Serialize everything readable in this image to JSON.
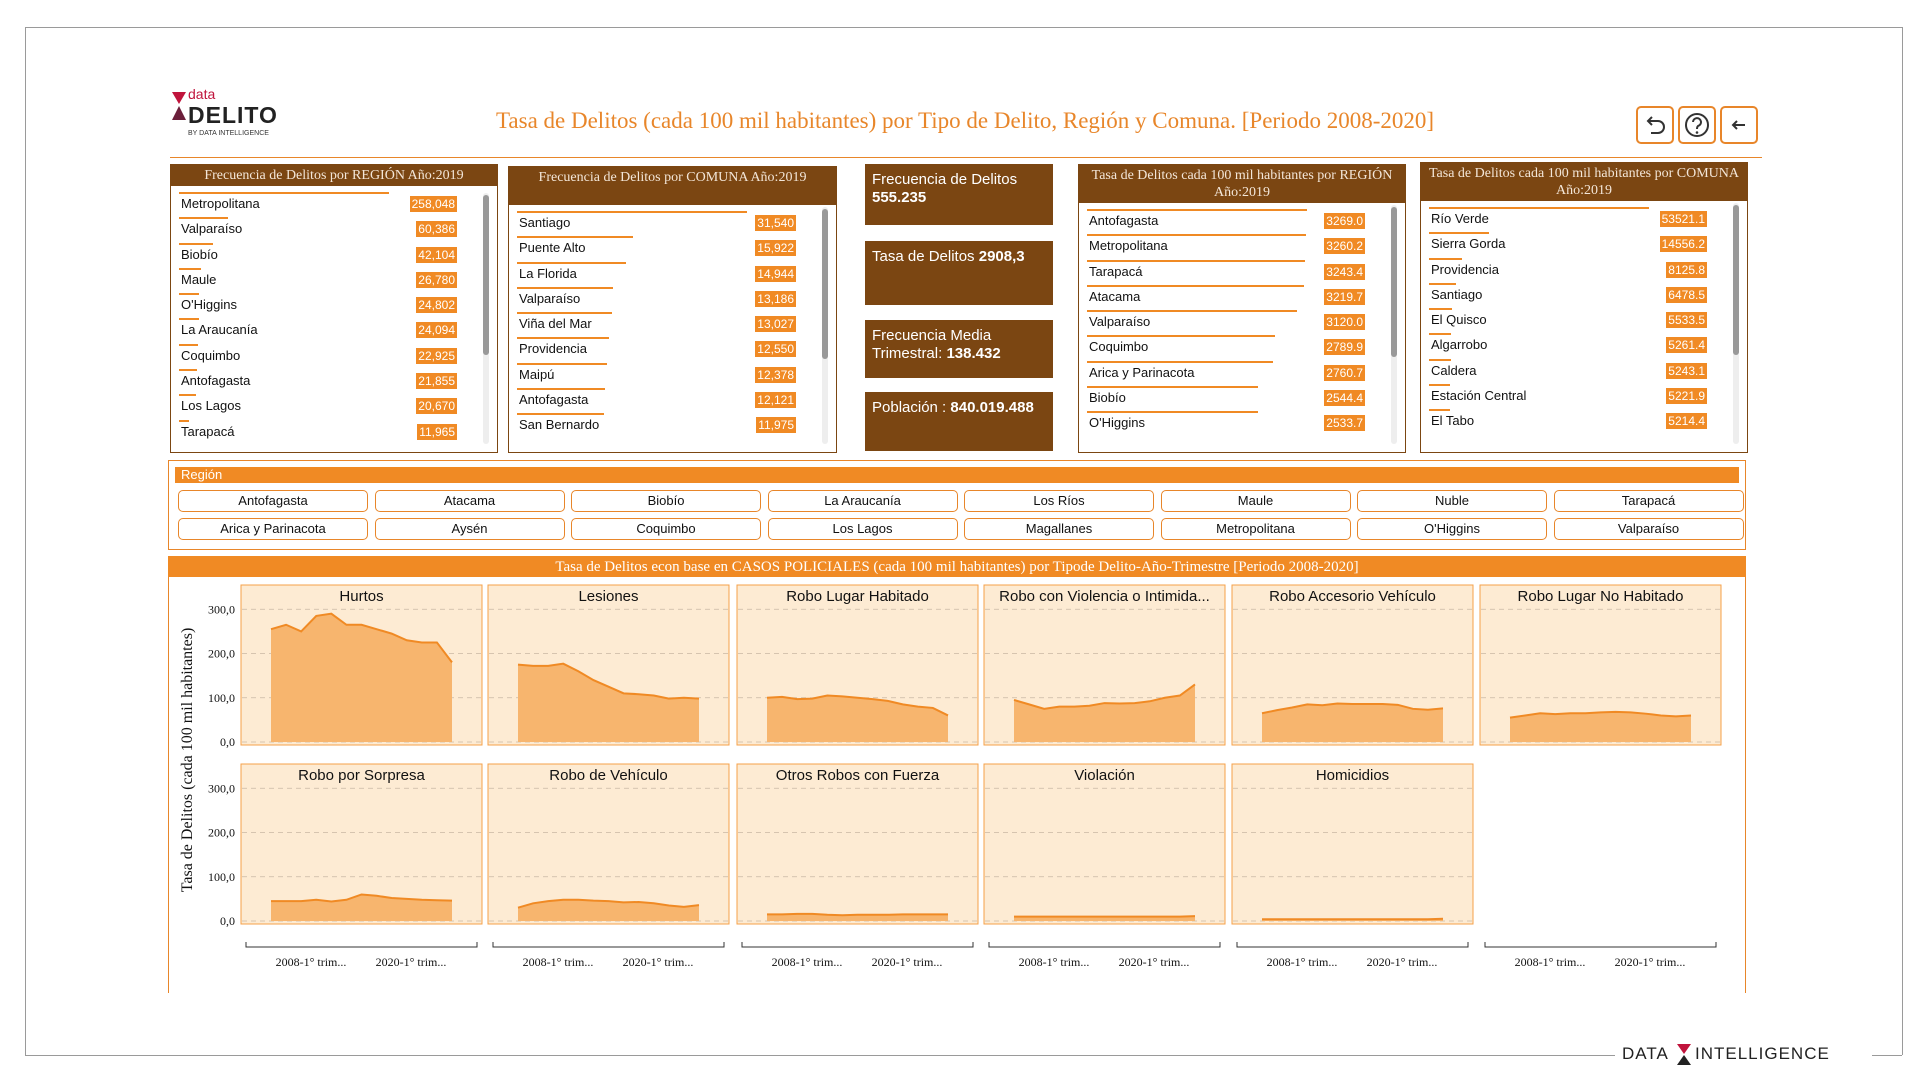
{
  "header": {
    "logo_small": "data",
    "logo_main": "DELITO",
    "logo_by": "BY DATA INTELLIGENCE",
    "title": "Tasa de Delitos (cada 100 mil habitantes) por Tipo de Delito, Región y Comuna. [Periodo 2008-2020]"
  },
  "lists": [
    {
      "title": "Frecuencia de Delitos por REGIÓN Año:2019",
      "rows": [
        {
          "name": "Metropolitana",
          "value": 258048,
          "label": "258,048"
        },
        {
          "name": "Valparaíso",
          "value": 60386,
          "label": "60,386"
        },
        {
          "name": "Biobío",
          "value": 42104,
          "label": "42,104"
        },
        {
          "name": "Maule",
          "value": 26780,
          "label": "26,780"
        },
        {
          "name": "O'Higgins",
          "value": 24802,
          "label": "24,802"
        },
        {
          "name": "La Araucanía",
          "value": 24094,
          "label": "24,094"
        },
        {
          "name": "Coquimbo",
          "value": 22925,
          "label": "22,925"
        },
        {
          "name": "Antofagasta",
          "value": 21855,
          "label": "21,855"
        },
        {
          "name": "Los Lagos",
          "value": 20670,
          "label": "20,670"
        },
        {
          "name": "Tarapacá",
          "value": 11965,
          "label": "11,965"
        }
      ]
    },
    {
      "title": "Frecuencia de Delitos por COMUNA Año:2019",
      "rows": [
        {
          "name": "Santiago",
          "value": 31540,
          "label": "31,540"
        },
        {
          "name": "Puente Alto",
          "value": 15922,
          "label": "15,922"
        },
        {
          "name": "La Florida",
          "value": 14944,
          "label": "14,944"
        },
        {
          "name": "Valparaíso",
          "value": 13186,
          "label": "13,186"
        },
        {
          "name": "Viña del Mar",
          "value": 13027,
          "label": "13,027"
        },
        {
          "name": "Providencia",
          "value": 12550,
          "label": "12,550"
        },
        {
          "name": "Maipú",
          "value": 12378,
          "label": "12,378"
        },
        {
          "name": "Antofagasta",
          "value": 12121,
          "label": "12,121"
        },
        {
          "name": "San Bernardo",
          "value": 11975,
          "label": "11,975"
        }
      ]
    },
    {
      "title": "Tasa de Delitos cada 100 mil habitantes por REGIÓN Año:2019",
      "rows": [
        {
          "name": "Antofagasta",
          "value": 3269.0,
          "label": "3269.0"
        },
        {
          "name": "Metropolitana",
          "value": 3260.2,
          "label": "3260.2"
        },
        {
          "name": "Tarapacá",
          "value": 3243.4,
          "label": "3243.4"
        },
        {
          "name": "Atacama",
          "value": 3219.7,
          "label": "3219.7"
        },
        {
          "name": "Valparaíso",
          "value": 3120.0,
          "label": "3120.0"
        },
        {
          "name": "Coquimbo",
          "value": 2789.9,
          "label": "2789.9"
        },
        {
          "name": "Arica y Parinacota",
          "value": 2760.7,
          "label": "2760.7"
        },
        {
          "name": "Biobío",
          "value": 2544.4,
          "label": "2544.4"
        },
        {
          "name": "O'Higgins",
          "value": 2533.7,
          "label": "2533.7"
        }
      ]
    },
    {
      "title": "Tasa de Delitos cada 100 mil habitantes por COMUNA Año:2019",
      "rows": [
        {
          "name": "Río Verde",
          "value": 53521.1,
          "label": "53521.1"
        },
        {
          "name": "Sierra Gorda",
          "value": 14556.2,
          "label": "14556.2"
        },
        {
          "name": "Providencia",
          "value": 8125.8,
          "label": "8125.8"
        },
        {
          "name": "Santiago",
          "value": 6478.5,
          "label": "6478.5"
        },
        {
          "name": "El Quisco",
          "value": 5533.5,
          "label": "5533.5"
        },
        {
          "name": "Algarrobo",
          "value": 5261.4,
          "label": "5261.4"
        },
        {
          "name": "Caldera",
          "value": 5243.1,
          "label": "5243.1"
        },
        {
          "name": "Estación Central",
          "value": 5221.9,
          "label": "5221.9"
        },
        {
          "name": "El Tabo",
          "value": 5214.4,
          "label": "5214.4"
        }
      ]
    }
  ],
  "kpis": [
    {
      "label": "Frecuencia de Delitos",
      "value": "555.235"
    },
    {
      "label": "Tasa de Delitos",
      "value": "2908,3"
    },
    {
      "label": "Frecuencia Media Trimestral:",
      "value": "138.432"
    },
    {
      "label": "Población :",
      "value": "840.019.488"
    }
  ],
  "region_filter": {
    "title": "Región",
    "options": [
      "Antofagasta",
      "Atacama",
      "Biobío",
      "La Araucanía",
      "Los Ríos",
      "Maule",
      "Nuble",
      "Tarapacá",
      "Arica y Parinacota",
      "Aysén",
      "Coquimbo",
      "Los Lagos",
      "Magallanes",
      "Metropolitana",
      "O'Higgins",
      "Valparaíso"
    ]
  },
  "trend_panel": {
    "type": "area",
    "title": "Tasa de Delitos econ base en CASOS POLICIALES (cada 100 mil habitantes) por Tipode Delito-Año-Trimestre [Periodo 2008-2020]",
    "y_label": "Tasa de Delitos (cada 100 mil habitantes)",
    "ylim": [
      0,
      330
    ],
    "yticks": [
      {
        "value": 0,
        "label": "0,0"
      },
      {
        "value": 100,
        "label": "100,0"
      },
      {
        "value": 200,
        "label": "200,0"
      },
      {
        "value": 300,
        "label": "300,0"
      }
    ],
    "x_labels": [
      "2008-1° trim...",
      "2020-1° trim..."
    ],
    "color": "#f08a24",
    "grid": true,
    "series": [
      {
        "name": "Hurtos",
        "values": [
          255,
          265,
          250,
          285,
          290,
          265,
          265,
          255,
          245,
          230,
          225,
          225,
          180
        ]
      },
      {
        "name": "Lesiones",
        "values": [
          175,
          172,
          172,
          177,
          160,
          140,
          125,
          110,
          108,
          105,
          98,
          100,
          98
        ]
      },
      {
        "name": "Robo Lugar Habitado",
        "values": [
          100,
          102,
          97,
          98,
          105,
          103,
          100,
          97,
          93,
          85,
          80,
          77,
          60
        ]
      },
      {
        "name": "Robo con Violencia o Intimida...",
        "values": [
          95,
          85,
          75,
          80,
          80,
          82,
          88,
          87,
          88,
          92,
          100,
          105,
          130
        ]
      },
      {
        "name": "Robo Accesorio Vehículo",
        "values": [
          65,
          72,
          78,
          85,
          83,
          87,
          86,
          86,
          86,
          84,
          75,
          73,
          76
        ]
      },
      {
        "name": "Robo Lugar No Habitado",
        "values": [
          55,
          60,
          65,
          63,
          65,
          65,
          67,
          68,
          67,
          64,
          60,
          58,
          60
        ]
      },
      {
        "name": "Robo por Sorpresa",
        "values": [
          45,
          45,
          45,
          48,
          44,
          48,
          60,
          57,
          52,
          50,
          48,
          47,
          46
        ]
      },
      {
        "name": "Robo de Vehículo",
        "values": [
          30,
          40,
          45,
          48,
          48,
          46,
          45,
          42,
          43,
          40,
          35,
          32,
          36
        ]
      },
      {
        "name": "Otros Robos con Fuerza",
        "values": [
          15,
          15,
          16,
          16,
          14,
          13,
          14,
          14,
          14,
          15,
          15,
          15,
          15
        ]
      },
      {
        "name": "Violación",
        "values": [
          10,
          10,
          10,
          10,
          10,
          10,
          10,
          10,
          10,
          10,
          10,
          10,
          11
        ]
      },
      {
        "name": "Homicidios",
        "values": [
          4,
          4,
          4,
          4,
          4,
          4,
          4,
          4,
          4,
          4,
          4,
          4,
          5
        ]
      }
    ]
  },
  "footer": {
    "left": "DATA",
    "right": "INTELLIGENCE"
  }
}
